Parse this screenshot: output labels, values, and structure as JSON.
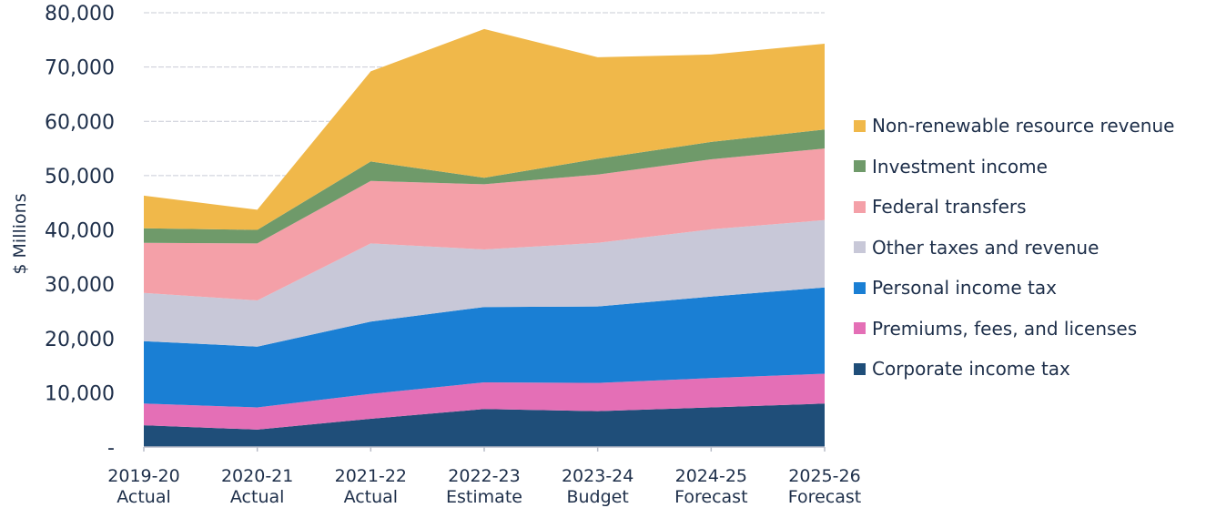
{
  "chart_data": {
    "type": "area",
    "stacked": true,
    "ylabel": "$ Millions",
    "xlabel": "",
    "ylim": [
      0,
      80000
    ],
    "yticks": [
      "-",
      "10,000",
      "20,000",
      "30,000",
      "40,000",
      "50,000",
      "60,000",
      "70,000",
      "80,000"
    ],
    "grid": true,
    "legend_position": "right",
    "categories": [
      [
        "2019-20",
        "Actual"
      ],
      [
        "2020-21",
        "Actual"
      ],
      [
        "2021-22",
        "Actual"
      ],
      [
        "2022-23",
        "Estimate"
      ],
      [
        "2023-24",
        "Budget"
      ],
      [
        "2024-25",
        "Forecast"
      ],
      [
        "2025-26",
        "Forecast"
      ]
    ],
    "series": [
      {
        "name": "Corporate income tax",
        "color": "#1f4e79",
        "values": [
          4000,
          3200,
          5200,
          7000,
          6600,
          7300,
          8000
        ]
      },
      {
        "name": "Premiums, fees, and licenses",
        "color": "#e46fb6",
        "values": [
          4000,
          4100,
          4600,
          4900,
          5200,
          5400,
          5500
        ]
      },
      {
        "name": "Personal income tax",
        "color": "#1a7fd4",
        "values": [
          11500,
          11200,
          13300,
          13900,
          14100,
          15000,
          15900
        ]
      },
      {
        "name": "Other taxes and revenue",
        "color": "#c8c8d8",
        "values": [
          8900,
          8500,
          14400,
          10600,
          11700,
          12400,
          12400
        ]
      },
      {
        "name": "Federal transfers",
        "color": "#f4a0a8",
        "values": [
          9200,
          10500,
          11500,
          12000,
          12600,
          12900,
          13200
        ]
      },
      {
        "name": "Investment income",
        "color": "#6f9a6a",
        "values": [
          2700,
          2500,
          3600,
          1200,
          2900,
          3200,
          3500
        ]
      },
      {
        "name": "Non-renewable resource revenue",
        "color": "#f0b84a",
        "values": [
          6000,
          3700,
          16600,
          27400,
          18700,
          16100,
          15800
        ]
      }
    ]
  }
}
